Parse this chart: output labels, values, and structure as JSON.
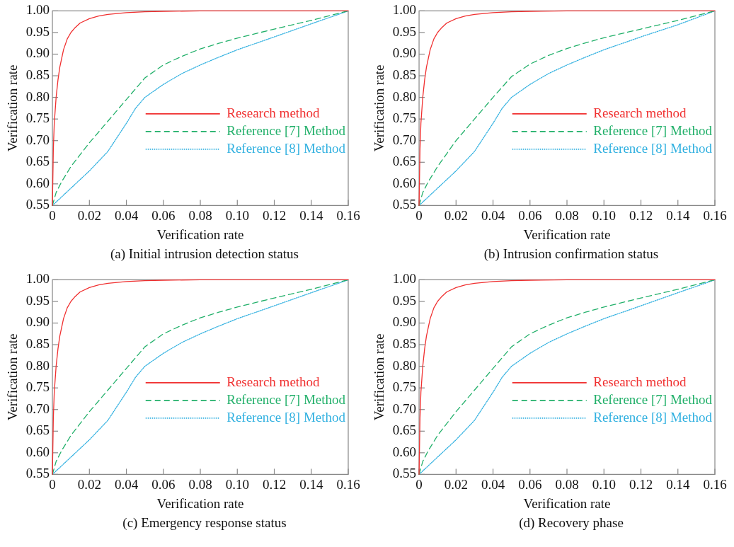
{
  "chart_data": [
    {
      "type": "line",
      "title": "(a) Initial intrusion detection status",
      "xlabel": "Verification rate",
      "ylabel": "Verification rate",
      "xlim": [
        0,
        0.16
      ],
      "ylim": [
        0.55,
        1.0
      ],
      "xticks": [
        {
          "value": 0,
          "label": "0"
        },
        {
          "value": 0.02,
          "label": "0.02"
        },
        {
          "value": 0.04,
          "label": "0.04"
        },
        {
          "value": 0.06,
          "label": "0.06"
        },
        {
          "value": 0.08,
          "label": "0.08"
        },
        {
          "value": 0.1,
          "label": "0.10"
        },
        {
          "value": 0.12,
          "label": "0.12"
        },
        {
          "value": 0.14,
          "label": "0.14"
        },
        {
          "value": 0.16,
          "label": "0.16"
        }
      ],
      "yticks": [
        {
          "value": 0.55,
          "label": "0.55"
        },
        {
          "value": 0.6,
          "label": "0.60"
        },
        {
          "value": 0.65,
          "label": "0.65"
        },
        {
          "value": 0.7,
          "label": "0.70"
        },
        {
          "value": 0.75,
          "label": "0.75"
        },
        {
          "value": 0.8,
          "label": "0.80"
        },
        {
          "value": 0.85,
          "label": "0.85"
        },
        {
          "value": 0.9,
          "label": "0.90"
        },
        {
          "value": 0.95,
          "label": "0.95"
        },
        {
          "value": 1.0,
          "label": "1.00"
        }
      ],
      "legend": "bottom right",
      "series": [
        {
          "name": "Research method",
          "color": "#f03030",
          "line_style": "solid",
          "x": [
            0,
            0.0005,
            0.001,
            0.002,
            0.003,
            0.004,
            0.005,
            0.006,
            0.008,
            0.01,
            0.012,
            0.015,
            0.02,
            0.025,
            0.03,
            0.04,
            0.05,
            0.06,
            0.08,
            0.1,
            0.12,
            0.14,
            0.16
          ],
          "values": [
            0.55,
            0.68,
            0.74,
            0.8,
            0.84,
            0.87,
            0.89,
            0.91,
            0.935,
            0.95,
            0.96,
            0.972,
            0.982,
            0.988,
            0.992,
            0.996,
            0.998,
            0.999,
            1.0,
            1.0,
            1.0,
            1.0,
            1.0
          ]
        },
        {
          "name": "Reference [7] Method",
          "color": "#22b06a",
          "line_style": "dashed",
          "x": [
            0,
            0.002,
            0.005,
            0.01,
            0.02,
            0.03,
            0.04,
            0.05,
            0.06,
            0.07,
            0.08,
            0.09,
            0.1,
            0.12,
            0.14,
            0.16
          ],
          "values": [
            0.55,
            0.58,
            0.605,
            0.64,
            0.695,
            0.745,
            0.795,
            0.845,
            0.875,
            0.895,
            0.912,
            0.925,
            0.937,
            0.958,
            0.978,
            1.0
          ]
        },
        {
          "name": "Reference [8] Method",
          "color": "#30b0e0",
          "line_style": "dotted",
          "x": [
            0,
            0.01,
            0.02,
            0.03,
            0.04,
            0.045,
            0.05,
            0.06,
            0.07,
            0.08,
            0.09,
            0.1,
            0.12,
            0.14,
            0.16
          ],
          "values": [
            0.55,
            0.59,
            0.63,
            0.675,
            0.74,
            0.775,
            0.8,
            0.83,
            0.855,
            0.875,
            0.893,
            0.91,
            0.94,
            0.97,
            1.0
          ]
        }
      ]
    },
    {
      "type": "line",
      "title": "(b) Intrusion confirmation status",
      "xlabel": "Verification rate",
      "ylabel": "Verification rate",
      "xlim": [
        0,
        0.16
      ],
      "ylim": [
        0.55,
        1.0
      ],
      "xticks": [
        {
          "value": 0,
          "label": "0"
        },
        {
          "value": 0.02,
          "label": "0.02"
        },
        {
          "value": 0.04,
          "label": "0.04"
        },
        {
          "value": 0.06,
          "label": "0.06"
        },
        {
          "value": 0.08,
          "label": "0.08"
        },
        {
          "value": 0.1,
          "label": "0.10"
        },
        {
          "value": 0.12,
          "label": "0.12"
        },
        {
          "value": 0.14,
          "label": "0.14"
        },
        {
          "value": 0.16,
          "label": "0.16"
        }
      ],
      "yticks": [
        {
          "value": 0.55,
          "label": "0.55"
        },
        {
          "value": 0.6,
          "label": "0.60"
        },
        {
          "value": 0.65,
          "label": "0.65"
        },
        {
          "value": 0.7,
          "label": "0.70"
        },
        {
          "value": 0.75,
          "label": "0.75"
        },
        {
          "value": 0.8,
          "label": "0.80"
        },
        {
          "value": 0.85,
          "label": "0.85"
        },
        {
          "value": 0.9,
          "label": "0.90"
        },
        {
          "value": 0.95,
          "label": "0.95"
        },
        {
          "value": 1.0,
          "label": "1.00"
        }
      ],
      "legend": "bottom right",
      "series": [
        {
          "name": "Research method",
          "color": "#f03030",
          "line_style": "solid",
          "x": [
            0,
            0.0005,
            0.001,
            0.002,
            0.003,
            0.004,
            0.005,
            0.006,
            0.008,
            0.01,
            0.012,
            0.015,
            0.02,
            0.025,
            0.03,
            0.04,
            0.05,
            0.06,
            0.08,
            0.1,
            0.12,
            0.14,
            0.16
          ],
          "values": [
            0.55,
            0.68,
            0.74,
            0.8,
            0.84,
            0.87,
            0.89,
            0.91,
            0.935,
            0.95,
            0.96,
            0.972,
            0.982,
            0.988,
            0.992,
            0.996,
            0.998,
            0.999,
            1.0,
            1.0,
            1.0,
            1.0,
            1.0
          ]
        },
        {
          "name": "Reference [7] Method",
          "color": "#22b06a",
          "line_style": "dashed",
          "x": [
            0,
            0.002,
            0.005,
            0.01,
            0.02,
            0.03,
            0.04,
            0.05,
            0.06,
            0.07,
            0.08,
            0.09,
            0.1,
            0.12,
            0.14,
            0.16
          ],
          "values": [
            0.55,
            0.58,
            0.605,
            0.64,
            0.7,
            0.75,
            0.8,
            0.848,
            0.877,
            0.897,
            0.913,
            0.926,
            0.938,
            0.958,
            0.978,
            1.0
          ]
        },
        {
          "name": "Reference [8] Method",
          "color": "#30b0e0",
          "line_style": "dotted",
          "x": [
            0,
            0.01,
            0.02,
            0.03,
            0.04,
            0.045,
            0.05,
            0.06,
            0.07,
            0.08,
            0.09,
            0.1,
            0.12,
            0.14,
            0.16
          ],
          "values": [
            0.55,
            0.59,
            0.63,
            0.675,
            0.74,
            0.775,
            0.8,
            0.83,
            0.855,
            0.875,
            0.893,
            0.91,
            0.94,
            0.968,
            1.0
          ]
        }
      ]
    },
    {
      "type": "line",
      "title": "(c) Emergency response status",
      "xlabel": "Verification rate",
      "ylabel": "Verification rate",
      "xlim": [
        0,
        0.16
      ],
      "ylim": [
        0.55,
        1.0
      ],
      "xticks": [
        {
          "value": 0,
          "label": "0"
        },
        {
          "value": 0.02,
          "label": "0.02"
        },
        {
          "value": 0.04,
          "label": "0.04"
        },
        {
          "value": 0.06,
          "label": "0.06"
        },
        {
          "value": 0.08,
          "label": "0.08"
        },
        {
          "value": 0.1,
          "label": "0.10"
        },
        {
          "value": 0.12,
          "label": "0.12"
        },
        {
          "value": 0.14,
          "label": "0.14"
        },
        {
          "value": 0.16,
          "label": "0.16"
        }
      ],
      "yticks": [
        {
          "value": 0.55,
          "label": "0.55"
        },
        {
          "value": 0.6,
          "label": "0.60"
        },
        {
          "value": 0.65,
          "label": "0.65"
        },
        {
          "value": 0.7,
          "label": "0.70"
        },
        {
          "value": 0.75,
          "label": "0.75"
        },
        {
          "value": 0.8,
          "label": "0.80"
        },
        {
          "value": 0.85,
          "label": "0.85"
        },
        {
          "value": 0.9,
          "label": "0.90"
        },
        {
          "value": 0.95,
          "label": "0.95"
        },
        {
          "value": 1.0,
          "label": "1.00"
        }
      ],
      "legend": "bottom right",
      "series": [
        {
          "name": "Research method",
          "color": "#f03030",
          "line_style": "solid",
          "x": [
            0,
            0.0005,
            0.001,
            0.002,
            0.003,
            0.004,
            0.005,
            0.006,
            0.008,
            0.01,
            0.012,
            0.015,
            0.02,
            0.025,
            0.03,
            0.04,
            0.05,
            0.06,
            0.08,
            0.1,
            0.12,
            0.14,
            0.16
          ],
          "values": [
            0.55,
            0.68,
            0.74,
            0.8,
            0.84,
            0.87,
            0.89,
            0.91,
            0.935,
            0.95,
            0.96,
            0.972,
            0.982,
            0.988,
            0.992,
            0.996,
            0.998,
            0.999,
            1.0,
            1.0,
            1.0,
            1.0,
            1.0
          ]
        },
        {
          "name": "Reference [7] Method",
          "color": "#22b06a",
          "line_style": "dashed",
          "x": [
            0,
            0.002,
            0.005,
            0.01,
            0.02,
            0.03,
            0.04,
            0.05,
            0.06,
            0.07,
            0.08,
            0.09,
            0.1,
            0.12,
            0.14,
            0.16
          ],
          "values": [
            0.55,
            0.58,
            0.605,
            0.64,
            0.695,
            0.745,
            0.795,
            0.845,
            0.875,
            0.895,
            0.912,
            0.925,
            0.937,
            0.958,
            0.978,
            1.0
          ]
        },
        {
          "name": "Reference [8] Method",
          "color": "#30b0e0",
          "line_style": "dotted",
          "x": [
            0,
            0.01,
            0.02,
            0.03,
            0.04,
            0.045,
            0.05,
            0.06,
            0.07,
            0.08,
            0.09,
            0.1,
            0.12,
            0.14,
            0.16
          ],
          "values": [
            0.55,
            0.59,
            0.63,
            0.675,
            0.74,
            0.775,
            0.8,
            0.83,
            0.855,
            0.875,
            0.893,
            0.91,
            0.94,
            0.97,
            1.0
          ]
        }
      ]
    },
    {
      "type": "line",
      "title": "(d) Recovery phase",
      "xlabel": "Verification rate",
      "ylabel": "Verification rate",
      "xlim": [
        0,
        0.16
      ],
      "ylim": [
        0.55,
        1.0
      ],
      "xticks": [
        {
          "value": 0,
          "label": "0"
        },
        {
          "value": 0.02,
          "label": "0.02"
        },
        {
          "value": 0.04,
          "label": "0.04"
        },
        {
          "value": 0.06,
          "label": "0.06"
        },
        {
          "value": 0.08,
          "label": "0.08"
        },
        {
          "value": 0.1,
          "label": "0.10"
        },
        {
          "value": 0.12,
          "label": "0.12"
        },
        {
          "value": 0.14,
          "label": "0.14"
        },
        {
          "value": 0.16,
          "label": "0.16"
        }
      ],
      "yticks": [
        {
          "value": 0.55,
          "label": "0.55"
        },
        {
          "value": 0.6,
          "label": "0.60"
        },
        {
          "value": 0.65,
          "label": "0.65"
        },
        {
          "value": 0.7,
          "label": "0.70"
        },
        {
          "value": 0.75,
          "label": "0.75"
        },
        {
          "value": 0.8,
          "label": "0.80"
        },
        {
          "value": 0.85,
          "label": "0.85"
        },
        {
          "value": 0.9,
          "label": "0.90"
        },
        {
          "value": 0.95,
          "label": "0.95"
        },
        {
          "value": 1.0,
          "label": "1.00"
        }
      ],
      "legend": "bottom right",
      "series": [
        {
          "name": "Research method",
          "color": "#f03030",
          "line_style": "solid",
          "x": [
            0,
            0.0005,
            0.001,
            0.002,
            0.003,
            0.004,
            0.005,
            0.006,
            0.008,
            0.01,
            0.012,
            0.015,
            0.02,
            0.025,
            0.03,
            0.04,
            0.05,
            0.06,
            0.08,
            0.1,
            0.12,
            0.14,
            0.16
          ],
          "values": [
            0.55,
            0.68,
            0.74,
            0.8,
            0.84,
            0.87,
            0.89,
            0.91,
            0.935,
            0.95,
            0.96,
            0.972,
            0.982,
            0.988,
            0.992,
            0.996,
            0.998,
            0.999,
            1.0,
            1.0,
            1.0,
            1.0,
            1.0
          ]
        },
        {
          "name": "Reference [7] Method",
          "color": "#22b06a",
          "line_style": "dashed",
          "x": [
            0,
            0.002,
            0.005,
            0.01,
            0.02,
            0.03,
            0.04,
            0.05,
            0.06,
            0.07,
            0.08,
            0.09,
            0.1,
            0.12,
            0.14,
            0.16
          ],
          "values": [
            0.55,
            0.58,
            0.605,
            0.64,
            0.695,
            0.745,
            0.795,
            0.845,
            0.875,
            0.895,
            0.912,
            0.925,
            0.937,
            0.958,
            0.978,
            1.0
          ]
        },
        {
          "name": "Reference [8] Method",
          "color": "#30b0e0",
          "line_style": "dotted",
          "x": [
            0,
            0.01,
            0.02,
            0.03,
            0.04,
            0.045,
            0.05,
            0.06,
            0.07,
            0.08,
            0.09,
            0.1,
            0.12,
            0.14,
            0.16
          ],
          "values": [
            0.55,
            0.59,
            0.63,
            0.675,
            0.74,
            0.775,
            0.8,
            0.83,
            0.855,
            0.875,
            0.893,
            0.91,
            0.94,
            0.97,
            1.0
          ]
        }
      ]
    }
  ]
}
